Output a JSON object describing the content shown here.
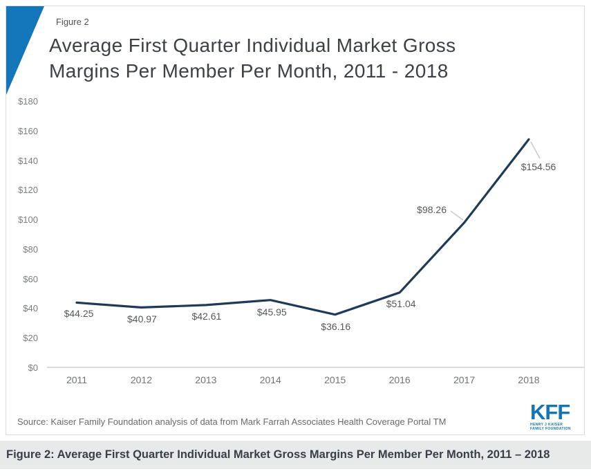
{
  "header": {
    "figure_label": "Figure 2",
    "title_line1": "Average First Quarter Individual Market Gross",
    "title_line2": "Margins Per Member Per Month, 2011 - 2018"
  },
  "chart_data": {
    "type": "line",
    "title": "Average First Quarter Individual Market Gross Margins Per Member Per Month, 2011 - 2018",
    "categories": [
      "2011",
      "2012",
      "2013",
      "2014",
      "2015",
      "2016",
      "2017",
      "2018"
    ],
    "series": [
      {
        "name": "Average first quarter gross margin per member per month",
        "values": [
          44.25,
          40.97,
          42.61,
          45.95,
          36.16,
          51.04,
          98.26,
          154.56
        ]
      }
    ],
    "point_labels": [
      "$44.25",
      "$40.97",
      "$42.61",
      "$45.95",
      "$36.16",
      "$51.04",
      "$98.26",
      "$154.56"
    ],
    "y_ticks": [
      {
        "label": "$0",
        "value": 0
      },
      {
        "label": "$20",
        "value": 20
      },
      {
        "label": "$40",
        "value": 40
      },
      {
        "label": "$60",
        "value": 60
      },
      {
        "label": "$80",
        "value": 80
      },
      {
        "label": "$100",
        "value": 100
      },
      {
        "label": "$120",
        "value": 120
      },
      {
        "label": "$140",
        "value": 140
      },
      {
        "label": "$160",
        "value": 160
      },
      {
        "label": "$180",
        "value": 180
      }
    ],
    "ylim": [
      0,
      180
    ],
    "grid": false,
    "legend": "none"
  },
  "footer": {
    "source": "Source: Kaiser Family Foundation analysis of data from Mark Farrah Associates Health Coverage Portal TM",
    "logo_text": "KFF",
    "logo_sub1": "HENRY J KAISER",
    "logo_sub2": "FAMILY FOUNDATION"
  },
  "caption_bar": {
    "text": "Figure 2: Average First Quarter Individual Market Gross Margins Per Member Per Month, 2011 – 2018"
  },
  "colors": {
    "accent_blue": "#1375ba",
    "logo_blue": "#1374b9",
    "line": "#1e3a55",
    "leader": "#c6cbd0",
    "caption_bg": "#e8eaea"
  }
}
